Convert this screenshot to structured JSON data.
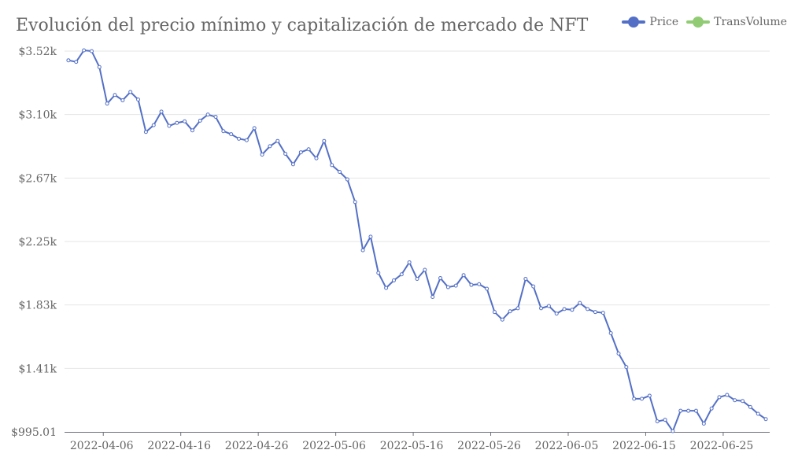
{
  "chart_data": {
    "type": "line",
    "title": "Evolución del precio mínimo y capitalización de mercado de NFT",
    "xlabel": "",
    "ylabel": "",
    "y_ticks": [
      "$995.01",
      "$1.41k",
      "$1.83k",
      "$2.25k",
      "$2.67k",
      "$3.10k",
      "$3.52k"
    ],
    "y_tick_values": [
      995.01,
      1416,
      1837,
      2258,
      2679,
      3100,
      3521
    ],
    "ylim": [
      995.01,
      3521
    ],
    "x_tick_labels": [
      "2022-04-06",
      "2022-04-16",
      "2022-04-26",
      "2022-05-06",
      "2022-05-16",
      "2022-05-26",
      "2022-06-05",
      "2022-06-15",
      "2022-06-25"
    ],
    "x_tick_index": [
      5,
      15,
      25,
      35,
      45,
      55,
      65,
      75,
      85
    ],
    "legend": [
      {
        "name": "Price",
        "color": "#5470c6"
      },
      {
        "name": "TransVolume",
        "color": "#91cc75"
      }
    ],
    "series": [
      {
        "name": "Price",
        "color": "#5470c6",
        "start_date": "2022-04-01",
        "values": [
          3460,
          3450,
          3526,
          3521,
          3415,
          3173,
          3230,
          3195,
          3250,
          3200,
          2985,
          3030,
          3120,
          3025,
          3045,
          3055,
          2995,
          3060,
          3100,
          3085,
          2990,
          2970,
          2940,
          2930,
          3010,
          2835,
          2890,
          2925,
          2840,
          2770,
          2850,
          2870,
          2810,
          2925,
          2765,
          2720,
          2670,
          2520,
          2200,
          2290,
          2050,
          1950,
          2000,
          2040,
          2120,
          2010,
          2070,
          1890,
          2015,
          1955,
          1965,
          2035,
          1970,
          1975,
          1945,
          1790,
          1740,
          1795,
          1815,
          2010,
          1960,
          1815,
          1830,
          1780,
          1810,
          1805,
          1850,
          1810,
          1790,
          1785,
          1650,
          1515,
          1425,
          1215,
          1215,
          1235,
          1065,
          1075,
          1000,
          1135,
          1135,
          1135,
          1050,
          1150,
          1225,
          1240,
          1205,
          1200,
          1160,
          1115,
          1080
        ]
      },
      {
        "name": "TransVolume",
        "color": "#91cc75",
        "values": []
      }
    ]
  }
}
